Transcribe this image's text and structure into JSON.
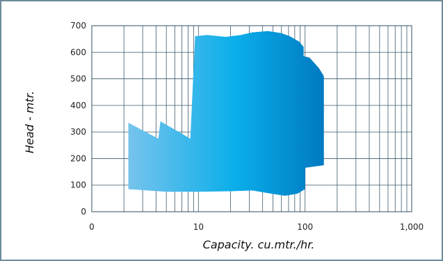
{
  "chart_data": {
    "type": "area",
    "title": "",
    "xlabel": "Capacity. cu.mtr./hr.",
    "ylabel": "Head - mtr.",
    "x_scale": "log",
    "x_ticks": [
      1,
      10,
      100,
      1000
    ],
    "x_tick_labels": [
      "0",
      "10",
      "100",
      "1,000"
    ],
    "xlim": [
      1,
      1000
    ],
    "y_ticks": [
      0,
      100,
      200,
      300,
      400,
      500,
      600,
      700
    ],
    "ylim": [
      0,
      700
    ],
    "grid": true,
    "legend": "none",
    "series": [
      {
        "upper_boundary": [
          {
            "x": 2.2,
            "y": 335
          },
          {
            "x": 4.2,
            "y": 275
          },
          {
            "x": 4.4,
            "y": 340
          },
          {
            "x": 8.4,
            "y": 275
          },
          {
            "x": 9.3,
            "y": 660
          },
          {
            "x": 12,
            "y": 665
          },
          {
            "x": 18,
            "y": 658
          },
          {
            "x": 25,
            "y": 665
          },
          {
            "x": 32,
            "y": 675
          },
          {
            "x": 45,
            "y": 680
          },
          {
            "x": 60,
            "y": 672
          },
          {
            "x": 72,
            "y": 660
          },
          {
            "x": 88,
            "y": 640
          },
          {
            "x": 97,
            "y": 620
          },
          {
            "x": 97,
            "y": 585
          },
          {
            "x": 110,
            "y": 580
          },
          {
            "x": 135,
            "y": 540
          },
          {
            "x": 150,
            "y": 510
          }
        ],
        "lower_boundary": [
          {
            "x": 150,
            "y": 175
          },
          {
            "x": 100,
            "y": 165
          },
          {
            "x": 100,
            "y": 85
          },
          {
            "x": 85,
            "y": 68
          },
          {
            "x": 65,
            "y": 60
          },
          {
            "x": 48,
            "y": 68
          },
          {
            "x": 32,
            "y": 80
          },
          {
            "x": 20,
            "y": 77
          },
          {
            "x": 10,
            "y": 75
          },
          {
            "x": 5,
            "y": 75
          },
          {
            "x": 2.2,
            "y": 85
          }
        ]
      }
    ],
    "fill_gradient": [
      "#78c4ec",
      "#0aaeea",
      "#0079c1"
    ]
  }
}
